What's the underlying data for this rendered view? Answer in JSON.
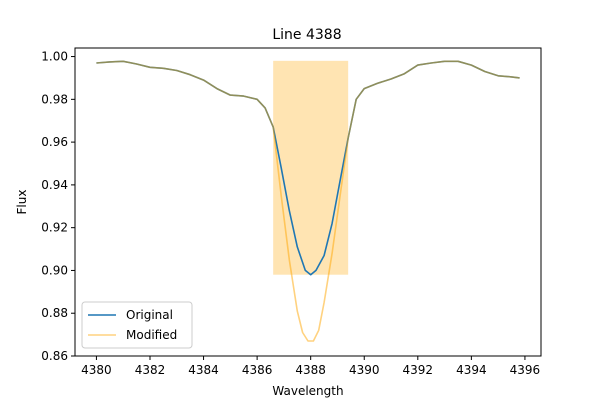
{
  "chart_data": {
    "type": "line",
    "title": "Line 4388",
    "xlabel": "Wavelength",
    "ylabel": "Flux",
    "xlim": [
      4379.2,
      4396.6
    ],
    "ylim": [
      0.86,
      1.004
    ],
    "xticks": [
      4380,
      4382,
      4384,
      4386,
      4388,
      4390,
      4392,
      4394,
      4396
    ],
    "yticks": [
      0.86,
      0.88,
      0.9,
      0.92,
      0.94,
      0.96,
      0.98,
      1.0
    ],
    "xtick_labels": [
      "4380",
      "4382",
      "4384",
      "4386",
      "4388",
      "4390",
      "4392",
      "4394",
      "4396"
    ],
    "ytick_labels": [
      "0.86",
      "0.88",
      "0.90",
      "0.92",
      "0.94",
      "0.96",
      "0.98",
      "1.00"
    ],
    "grid": false,
    "legend_position": "lower-left",
    "shaded_region": {
      "x0": 4386.6,
      "x1": 4389.4,
      "y0": 0.898,
      "y1": 0.998,
      "color": "#ffa500",
      "opacity": 0.3
    },
    "series": [
      {
        "name": "Original",
        "color": "#1f77b4",
        "opacity": 1.0,
        "x": [
          4380,
          4380.5,
          4381,
          4381.5,
          4382,
          4382.5,
          4383,
          4383.5,
          4384,
          4384.5,
          4385,
          4385.5,
          4386,
          4386.3,
          4386.6,
          4386.9,
          4387.2,
          4387.5,
          4387.8,
          4388.0,
          4388.2,
          4388.5,
          4388.8,
          4389.1,
          4389.4,
          4389.7,
          4390,
          4390.5,
          4391,
          4391.5,
          4392,
          4392.5,
          4393,
          4393.5,
          4394,
          4394.5,
          4395,
          4395.5,
          4395.8
        ],
        "y": [
          0.997,
          0.9975,
          0.9978,
          0.9965,
          0.995,
          0.9945,
          0.9935,
          0.9915,
          0.989,
          0.985,
          0.982,
          0.9815,
          0.98,
          0.976,
          0.967,
          0.948,
          0.928,
          0.911,
          0.9,
          0.898,
          0.9,
          0.907,
          0.922,
          0.942,
          0.962,
          0.98,
          0.985,
          0.9875,
          0.9895,
          0.992,
          0.996,
          0.997,
          0.9978,
          0.9978,
          0.996,
          0.993,
          0.991,
          0.9905,
          0.99
        ]
      },
      {
        "name": "Modified",
        "color": "#ffa500",
        "opacity": 0.5,
        "x": [
          4380,
          4380.5,
          4381,
          4381.5,
          4382,
          4382.5,
          4383,
          4383.5,
          4384,
          4384.5,
          4385,
          4385.5,
          4386,
          4386.3,
          4386.6,
          4386.9,
          4387.2,
          4387.5,
          4387.7,
          4387.9,
          4388.1,
          4388.3,
          4388.5,
          4388.8,
          4389.1,
          4389.4,
          4389.7,
          4390,
          4390.5,
          4391,
          4391.5,
          4392,
          4392.5,
          4393,
          4393.5,
          4394,
          4394.5,
          4395,
          4395.5,
          4395.8
        ],
        "y": [
          0.997,
          0.9975,
          0.9978,
          0.9965,
          0.995,
          0.9945,
          0.9935,
          0.9915,
          0.989,
          0.985,
          0.982,
          0.9815,
          0.98,
          0.976,
          0.967,
          0.935,
          0.905,
          0.881,
          0.871,
          0.867,
          0.867,
          0.872,
          0.885,
          0.908,
          0.935,
          0.962,
          0.98,
          0.985,
          0.9875,
          0.9895,
          0.992,
          0.996,
          0.997,
          0.9978,
          0.9978,
          0.996,
          0.993,
          0.991,
          0.9905,
          0.99
        ]
      }
    ]
  }
}
